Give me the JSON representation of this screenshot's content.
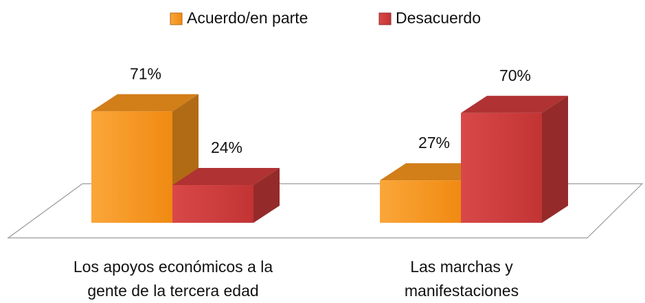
{
  "chart_data": {
    "type": "bar3d",
    "categories": [
      [
        "Los apoyos económicos a la",
        "gente de la tercera edad"
      ],
      [
        "Las marchas y",
        "manifestaciones"
      ]
    ],
    "series": [
      {
        "name": "Acuerdo/en parte",
        "color": "#f7941d",
        "values": [
          71,
          27
        ],
        "value_labels": [
          "71%",
          "27%"
        ]
      },
      {
        "name": "Desacuerdo",
        "color": "#cf3b3b",
        "values": [
          24,
          70
        ],
        "value_labels": [
          "24%",
          "70%"
        ]
      }
    ],
    "legend": "top"
  }
}
